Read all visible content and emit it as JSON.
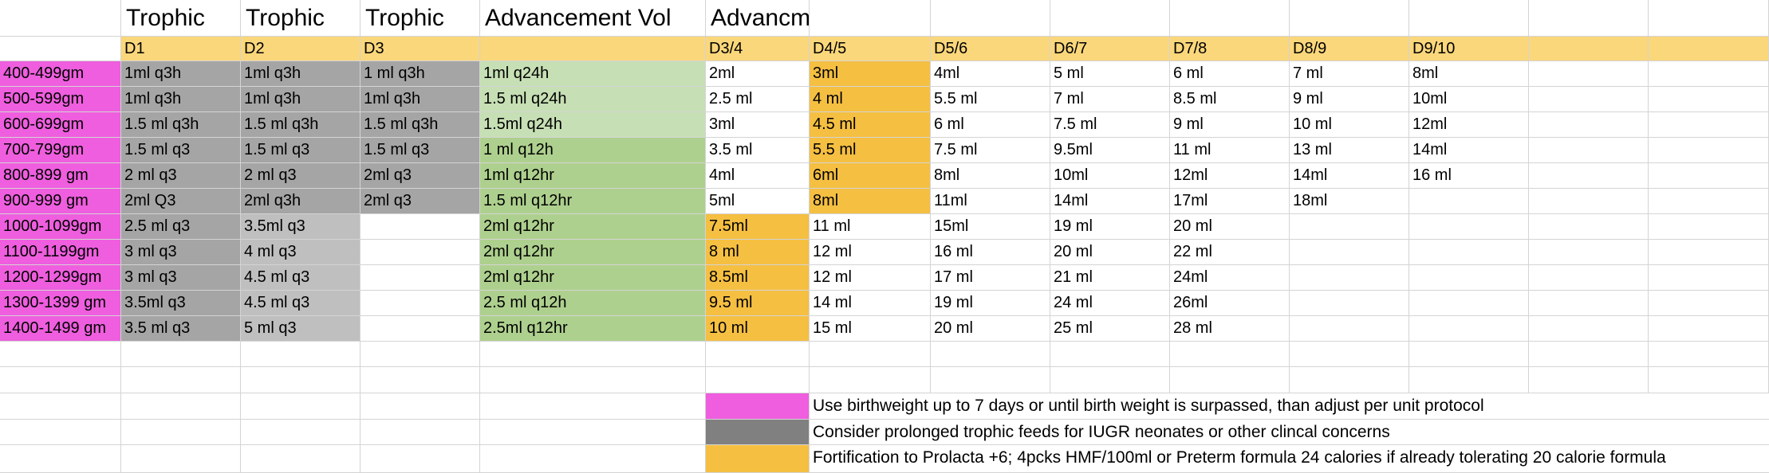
{
  "colors": {
    "pink": "#ee5ede",
    "dark_gray": "#a5a5a5",
    "light_gray": "#bfbfbf",
    "light_green": "#c6dfb4",
    "green": "#aed08e",
    "orange": "#f5bf42",
    "yellow": "#fbd77b",
    "legend_gray": "#808080",
    "gridline": "#d4d4d4"
  },
  "header_row": [
    "",
    "Trophic",
    "Trophic",
    "Trophic",
    "Advancement Vol",
    "Advancment",
    "",
    "",
    "",
    "",
    "",
    "",
    ""
  ],
  "day_row": [
    "",
    "D1",
    "D2",
    "D3",
    "",
    "D3/4",
    "D4/5",
    "D5/6",
    "D6/7",
    "D7/8",
    "D8/9",
    "D9/10",
    ""
  ],
  "rows": [
    {
      "cells": [
        "400-499gm",
        "1ml q3h",
        "1ml q3h",
        "1 ml q3h",
        "1ml q24h",
        "2ml",
        "3ml",
        "4ml",
        "5 ml",
        "6 ml",
        "7 ml",
        "8ml",
        ""
      ],
      "fills": [
        "pink",
        "dark_gray",
        "dark_gray",
        "dark_gray",
        "light_green",
        "",
        "orange",
        "",
        "",
        "",
        "",
        "",
        ""
      ]
    },
    {
      "cells": [
        "500-599gm",
        "1ml q3h",
        "1ml q3h",
        "1ml q3h",
        "1.5 ml q24h",
        "2.5 ml",
        "4 ml",
        "5.5 ml",
        "7 ml",
        "8.5 ml",
        "9 ml",
        "10ml",
        ""
      ],
      "fills": [
        "pink",
        "dark_gray",
        "dark_gray",
        "dark_gray",
        "light_green",
        "",
        "orange",
        "",
        "",
        "",
        "",
        "",
        ""
      ]
    },
    {
      "cells": [
        "600-699gm",
        "1.5 ml q3h",
        "1.5 ml q3h",
        "1.5 ml q3h",
        "1.5ml q24h",
        "3ml",
        "4.5 ml",
        "6 ml",
        "7.5 ml",
        "9 ml",
        "10 ml",
        "12ml",
        ""
      ],
      "fills": [
        "pink",
        "dark_gray",
        "dark_gray",
        "dark_gray",
        "light_green",
        "",
        "orange",
        "",
        "",
        "",
        "",
        "",
        ""
      ]
    },
    {
      "cells": [
        "700-799gm",
        "1.5 ml q3",
        "1.5 ml q3",
        "1.5 ml q3",
        "1 ml q12h",
        "3.5 ml",
        "5.5 ml",
        "7.5 ml",
        "9.5ml",
        "11 ml",
        "13 ml",
        "14ml",
        ""
      ],
      "fills": [
        "pink",
        "dark_gray",
        "dark_gray",
        "dark_gray",
        "green",
        "",
        "orange",
        "",
        "",
        "",
        "",
        "",
        ""
      ]
    },
    {
      "cells": [
        "800-899 gm",
        "2 ml q3",
        "2 ml q3",
        "2ml q3",
        "1ml q12hr",
        "4ml",
        "6ml",
        "8ml",
        "10ml",
        "12ml",
        "14ml",
        "16 ml",
        ""
      ],
      "fills": [
        "pink",
        "dark_gray",
        "dark_gray",
        "dark_gray",
        "green",
        "",
        "orange",
        "",
        "",
        "",
        "",
        "",
        ""
      ]
    },
    {
      "cells": [
        "900-999 gm",
        "2ml Q3",
        "2ml q3h",
        "2ml q3",
        "1.5  ml q12hr",
        "5ml",
        "8ml",
        "11ml",
        "14ml",
        "17ml",
        "18ml",
        "",
        ""
      ],
      "fills": [
        "pink",
        "dark_gray",
        "dark_gray",
        "dark_gray",
        "green",
        "",
        "orange",
        "",
        "",
        "",
        "",
        "",
        ""
      ]
    },
    {
      "cells": [
        "1000-1099gm",
        "2.5 ml q3",
        "3.5ml q3",
        "",
        "2ml q12hr",
        "7.5ml",
        "11 ml",
        "15ml",
        "19 ml",
        "20 ml",
        "",
        "",
        ""
      ],
      "fills": [
        "pink",
        "dark_gray",
        "light_gray",
        "",
        "green",
        "orange",
        "",
        "",
        "",
        "",
        "",
        "",
        ""
      ]
    },
    {
      "cells": [
        "1100-1199gm",
        "3 ml q3",
        "4 ml q3",
        "",
        "2ml q12hr",
        "8 ml",
        "12 ml",
        "16 ml",
        "20 ml",
        "22 ml",
        "",
        "",
        ""
      ],
      "fills": [
        "pink",
        "dark_gray",
        "light_gray",
        "",
        "green",
        "orange",
        "",
        "",
        "",
        "",
        "",
        "",
        ""
      ]
    },
    {
      "cells": [
        "1200-1299gm",
        "3 ml q3",
        "4.5 ml q3",
        "",
        "2ml q12hr",
        "8.5ml",
        "12 ml",
        "17 ml",
        "21 ml",
        "24ml",
        "",
        "",
        ""
      ],
      "fills": [
        "pink",
        "dark_gray",
        "light_gray",
        "",
        "green",
        "orange",
        "",
        "",
        "",
        "",
        "",
        "",
        ""
      ]
    },
    {
      "cells": [
        "1300-1399 gm",
        "3.5ml q3",
        "4.5 ml q3",
        "",
        "2.5 ml q12h",
        "9.5 ml",
        "14 ml",
        "19 ml",
        "24 ml",
        "26ml",
        "",
        "",
        ""
      ],
      "fills": [
        "pink",
        "dark_gray",
        "light_gray",
        "",
        "green",
        "orange",
        "",
        "",
        "",
        "",
        "",
        "",
        ""
      ]
    },
    {
      "cells": [
        "1400-1499 gm",
        "3.5 ml q3",
        "5 ml q3",
        "",
        "2.5ml q12hr",
        "10 ml",
        "15 ml",
        "20 ml",
        "25 ml",
        "28 ml",
        "",
        "",
        ""
      ],
      "fills": [
        "pink",
        "dark_gray",
        "light_gray",
        "",
        "green",
        "orange",
        "",
        "",
        "",
        "",
        "",
        "",
        ""
      ]
    }
  ],
  "legend": [
    {
      "swatch": "pink",
      "text": "Use birthweight up to 7 days or until birth weight is surpassed, than adjust per unit protocol"
    },
    {
      "swatch": "legend_gray",
      "text": "Consider prolonged trophic feeds for IUGR neonates or  other clincal concerns"
    },
    {
      "swatch": "orange",
      "text": "Fortification to Prolacta +6; 4pcks HMF/100ml or Preterm formula 24 calories if already tolerating 20 calorie formula"
    }
  ]
}
